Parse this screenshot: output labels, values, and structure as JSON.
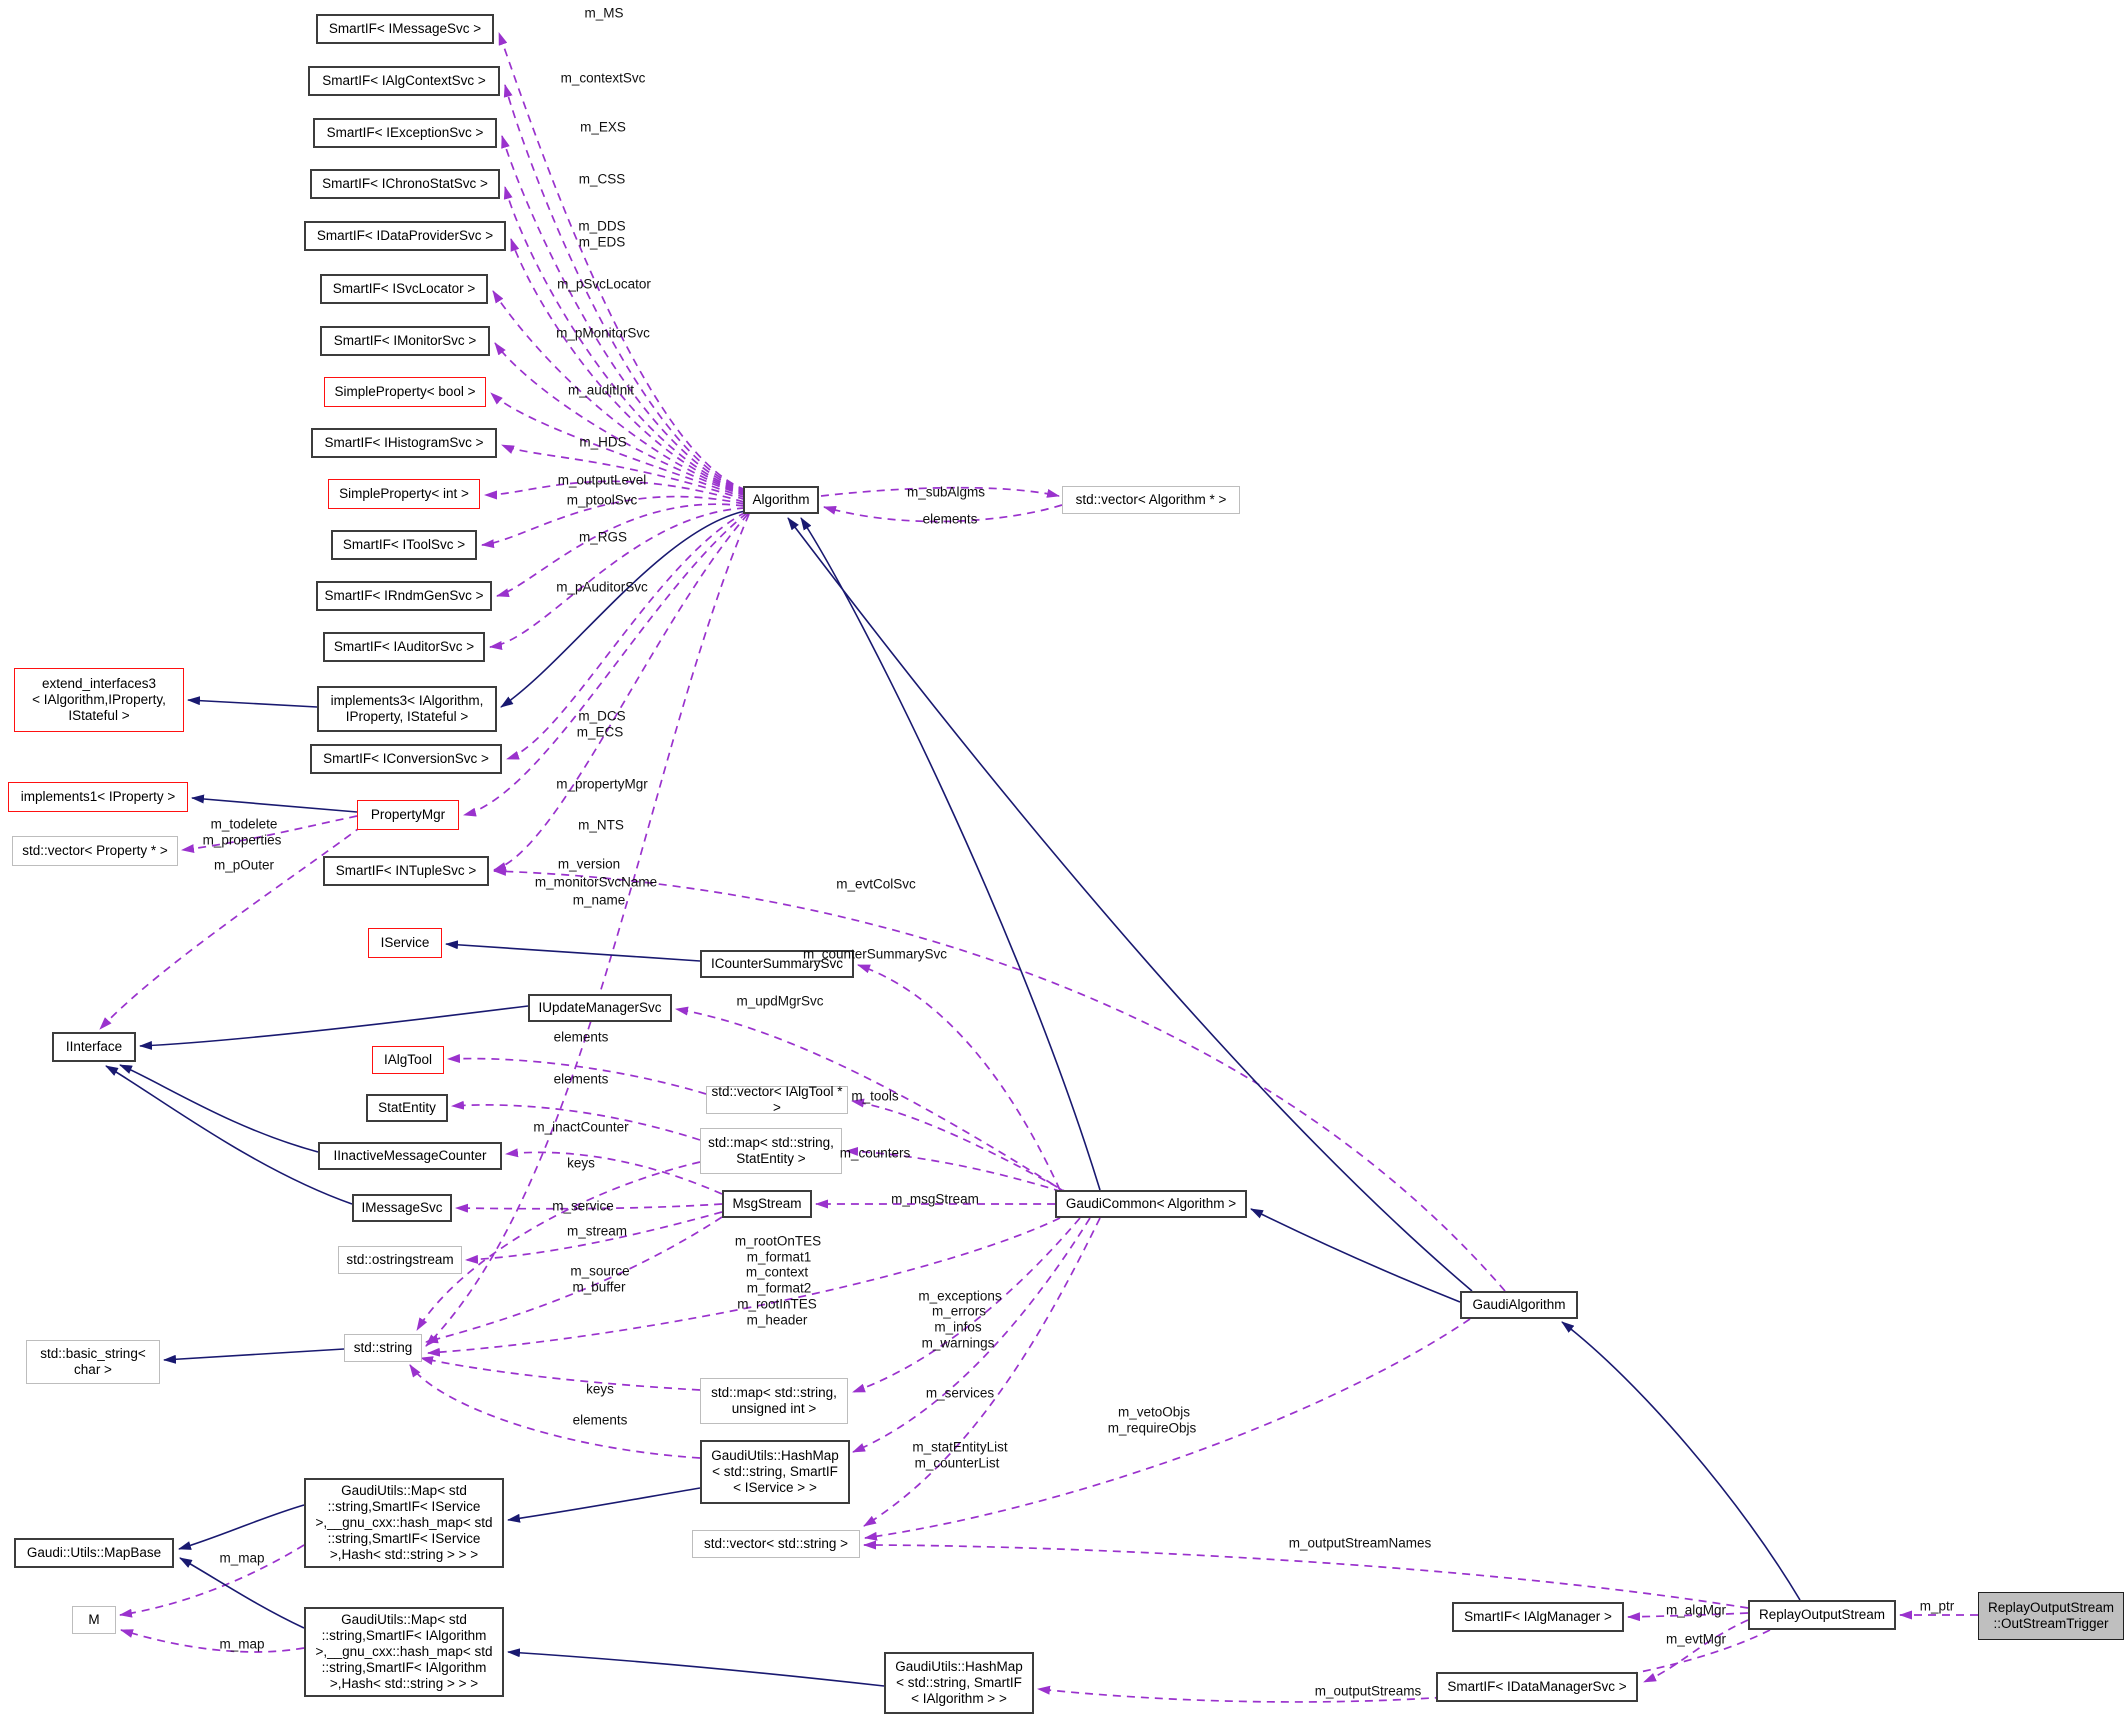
{
  "colors": {
    "inheritance_edge": "#191970",
    "usage_edge": "#9a32cd",
    "box_border": "#3c3c3c",
    "red_border": "#ff1111",
    "gray_border": "#bdbdbd",
    "highlight_fill": "#bfbfbf",
    "background": "#ffffff"
  },
  "nodes": [
    {
      "id": "smartif-imessagesvc",
      "label": "SmartIF< IMessageSvc >",
      "style": "default"
    },
    {
      "id": "smartif-ialgcontextsvc",
      "label": "SmartIF< IAlgContextSvc >",
      "style": "default"
    },
    {
      "id": "smartif-iexceptionsvc",
      "label": "SmartIF< IExceptionSvc >",
      "style": "default"
    },
    {
      "id": "smartif-ichronostatsvc",
      "label": "SmartIF< IChronoStatSvc >",
      "style": "default"
    },
    {
      "id": "smartif-idataprovidersvc",
      "label": "SmartIF< IDataProviderSvc >",
      "style": "default"
    },
    {
      "id": "smartif-isvclocator",
      "label": "SmartIF< ISvcLocator >",
      "style": "default"
    },
    {
      "id": "smartif-imonitorsvc",
      "label": "SmartIF< IMonitorSvc >",
      "style": "default"
    },
    {
      "id": "simpleproperty-bool",
      "label": "SimpleProperty< bool >",
      "style": "red"
    },
    {
      "id": "smartif-ihistogramsvc",
      "label": "SmartIF< IHistogramSvc >",
      "style": "default"
    },
    {
      "id": "simpleproperty-int",
      "label": "SimpleProperty< int >",
      "style": "red"
    },
    {
      "id": "smartif-itoolsvc",
      "label": "SmartIF< IToolSvc >",
      "style": "default"
    },
    {
      "id": "smartif-irndmgensvc",
      "label": "SmartIF< IRndmGenSvc >",
      "style": "default"
    },
    {
      "id": "smartif-iauditorsvc",
      "label": "SmartIF< IAuditorSvc >",
      "style": "default"
    },
    {
      "id": "implements3",
      "label": "implements3< IAlgorithm,\nIProperty, IStateful >",
      "style": "default"
    },
    {
      "id": "smartif-iconversionsvc",
      "label": "SmartIF< IConversionSvc >",
      "style": "default"
    },
    {
      "id": "propertymgr",
      "label": "PropertyMgr",
      "style": "red"
    },
    {
      "id": "smartif-intuplesvc",
      "label": "SmartIF< INTupleSvc >",
      "style": "default"
    },
    {
      "id": "extend-interfaces3",
      "label": "extend_interfaces3\n< IAlgorithm,IProperty,\nIStateful >",
      "style": "red"
    },
    {
      "id": "implements1-iproperty",
      "label": "implements1< IProperty >",
      "style": "red"
    },
    {
      "id": "vector-property",
      "label": "std::vector< Property * >",
      "style": "gray"
    },
    {
      "id": "iservice",
      "label": "IService",
      "style": "red"
    },
    {
      "id": "icountersummarysvc",
      "label": "ICounterSummarySvc",
      "style": "default"
    },
    {
      "id": "iupdatemanagersvc",
      "label": "IUpdateManagerSvc",
      "style": "default"
    },
    {
      "id": "ialgtool",
      "label": "IAlgTool",
      "style": "red"
    },
    {
      "id": "statentity",
      "label": "StatEntity",
      "style": "default"
    },
    {
      "id": "iinactivemessagecounter",
      "label": "IInactiveMessageCounter",
      "style": "default"
    },
    {
      "id": "imessagesvc",
      "label": "IMessageSvc",
      "style": "default"
    },
    {
      "id": "ostringstream",
      "label": "std::ostringstream",
      "style": "gray"
    },
    {
      "id": "iinterface",
      "label": "IInterface",
      "style": "default"
    },
    {
      "id": "basic-string",
      "label": "std::basic_string<\nchar >",
      "style": "gray"
    },
    {
      "id": "std-string",
      "label": "std::string",
      "style": "gray"
    },
    {
      "id": "algorithm",
      "label": "Algorithm",
      "style": "default"
    },
    {
      "id": "vector-algorithm",
      "label": "std::vector< Algorithm * >",
      "style": "gray"
    },
    {
      "id": "vector-ialgtool",
      "label": "std::vector< IAlgTool * >",
      "style": "gray"
    },
    {
      "id": "map-statentity",
      "label": "std::map< std::string,\nStatEntity >",
      "style": "gray"
    },
    {
      "id": "msgstream",
      "label": "MsgStream",
      "style": "default"
    },
    {
      "id": "map-uint",
      "label": "std::map< std::string,\nunsigned int >",
      "style": "gray"
    },
    {
      "id": "hashmap-iservice",
      "label": "GaudiUtils::HashMap\n< std::string, SmartIF\n< IService > >",
      "style": "default"
    },
    {
      "id": "vector-string",
      "label": "std::vector< std::string >",
      "style": "gray"
    },
    {
      "id": "gaudicommon",
      "label": "GaudiCommon< Algorithm >",
      "style": "default"
    },
    {
      "id": "gaudialgorithm",
      "label": "GaudiAlgorithm",
      "style": "default"
    },
    {
      "id": "mapbase",
      "label": "Gaudi::Utils::MapBase",
      "style": "default"
    },
    {
      "id": "m-node",
      "label": "M",
      "style": "gray"
    },
    {
      "id": "map-iservice-full",
      "label": "GaudiUtils::Map< std\n::string,SmartIF< IService\n >,__gnu_cxx::hash_map< std\n::string,SmartIF< IService\n >,Hash< std::string > > >",
      "style": "default"
    },
    {
      "id": "map-ialgorithm-full",
      "label": "GaudiUtils::Map< std\n::string,SmartIF< IAlgorithm\n >,__gnu_cxx::hash_map< std\n::string,SmartIF< IAlgorithm\n >,Hash< std::string > > >",
      "style": "default"
    },
    {
      "id": "hashmap-ialgorithm",
      "label": "GaudiUtils::HashMap\n< std::string, SmartIF\n< IAlgorithm > >",
      "style": "default"
    },
    {
      "id": "smartif-ialgmanager",
      "label": "SmartIF< IAlgManager >",
      "style": "default"
    },
    {
      "id": "smartif-idatamanagersvc",
      "label": "SmartIF< IDataManagerSvc >",
      "style": "default"
    },
    {
      "id": "replayoutputstream",
      "label": "ReplayOutputStream",
      "style": "default"
    },
    {
      "id": "outstreamtrigger",
      "label": "ReplayOutputStream\n::OutStreamTrigger",
      "style": "highlight"
    }
  ],
  "edge_labels": [
    {
      "id": "m-ms",
      "text": "m_MS"
    },
    {
      "id": "m-contextsvc",
      "text": "m_contextSvc"
    },
    {
      "id": "m-exs",
      "text": "m_EXS"
    },
    {
      "id": "m-css",
      "text": "m_CSS"
    },
    {
      "id": "m-dds",
      "text": "m_DDS"
    },
    {
      "id": "m-eds",
      "text": "m_EDS"
    },
    {
      "id": "m-psvclocator",
      "text": "m_pSvcLocator"
    },
    {
      "id": "m-pmonitorsvc",
      "text": "m_pMonitorSvc"
    },
    {
      "id": "m-auditinit",
      "text": "m_auditInit"
    },
    {
      "id": "m-hds",
      "text": "m_HDS"
    },
    {
      "id": "m-outputlevel",
      "text": "m_outputLevel"
    },
    {
      "id": "m-ptoolsvc",
      "text": "m_ptoolSvc"
    },
    {
      "id": "m-rgs",
      "text": "m_RGS"
    },
    {
      "id": "m-pauditorsvc",
      "text": "m_pAuditorSvc"
    },
    {
      "id": "m-dcs",
      "text": "m_DCS"
    },
    {
      "id": "m-ecs",
      "text": "m_ECS"
    },
    {
      "id": "m-propertymgr",
      "text": "m_propertyMgr"
    },
    {
      "id": "m-nts",
      "text": "m_NTS"
    },
    {
      "id": "m-version",
      "text": "m_version"
    },
    {
      "id": "m-monitorsvcname",
      "text": "m_monitorSvcName"
    },
    {
      "id": "m-name",
      "text": "m_name"
    },
    {
      "id": "m-subalgms",
      "text": "m_subAlgms"
    },
    {
      "id": "elements-subalg",
      "text": "elements"
    },
    {
      "id": "m-todelete",
      "text": "m_todelete"
    },
    {
      "id": "m-properties",
      "text": "m_properties"
    },
    {
      "id": "m-pouter",
      "text": "m_pOuter"
    },
    {
      "id": "m-evtcolsvc",
      "text": "m_evtColSvc"
    },
    {
      "id": "m-countersummarysvc",
      "text": "m_counterSummarySvc"
    },
    {
      "id": "m-updmgrsvc",
      "text": "m_updMgrSvc"
    },
    {
      "id": "elements-ialgtool",
      "text": "elements"
    },
    {
      "id": "elements-statentity",
      "text": "elements"
    },
    {
      "id": "m-tools",
      "text": "m_tools"
    },
    {
      "id": "m-inactcounter",
      "text": "m_inactCounter"
    },
    {
      "id": "keys-statentity",
      "text": "keys"
    },
    {
      "id": "m-counters",
      "text": "m_counters"
    },
    {
      "id": "m-service",
      "text": "m_service"
    },
    {
      "id": "m-msgstream",
      "text": "m_msgStream"
    },
    {
      "id": "m-stream",
      "text": "m_stream"
    },
    {
      "id": "m-source",
      "text": "m_source"
    },
    {
      "id": "m-buffer",
      "text": "m_buffer"
    },
    {
      "id": "m-rootontes",
      "text": "m_rootOnTES"
    },
    {
      "id": "m-format1",
      "text": "m_format1"
    },
    {
      "id": "m-context",
      "text": "m_context"
    },
    {
      "id": "m-format2",
      "text": "m_format2"
    },
    {
      "id": "m-rootintes",
      "text": "m_rootInTES"
    },
    {
      "id": "m-header",
      "text": "m_header"
    },
    {
      "id": "m-exceptions",
      "text": "m_exceptions"
    },
    {
      "id": "m-errors",
      "text": "m_errors"
    },
    {
      "id": "m-infos",
      "text": "m_infos"
    },
    {
      "id": "m-warnings",
      "text": "m_warnings"
    },
    {
      "id": "keys-uint",
      "text": "keys"
    },
    {
      "id": "elements-hashmap",
      "text": "elements"
    },
    {
      "id": "m-services",
      "text": "m_services"
    },
    {
      "id": "m-statentitylist",
      "text": "m_statEntityList"
    },
    {
      "id": "m-counterlist",
      "text": "m_counterList"
    },
    {
      "id": "m-vetoobjs",
      "text": "m_vetoObjs"
    },
    {
      "id": "m-requireobjs",
      "text": "m_requireObjs"
    },
    {
      "id": "m-outputstreamnames",
      "text": "m_outputStreamNames"
    },
    {
      "id": "m-outputstreams",
      "text": "m_outputStreams"
    },
    {
      "id": "m-algmgr",
      "text": "m_algMgr"
    },
    {
      "id": "m-evtmgr",
      "text": "m_evtMgr"
    },
    {
      "id": "m-ptr",
      "text": "m_ptr"
    },
    {
      "id": "m-map-service",
      "text": "m_map"
    },
    {
      "id": "m-map-algorithm",
      "text": "m_map"
    }
  ]
}
